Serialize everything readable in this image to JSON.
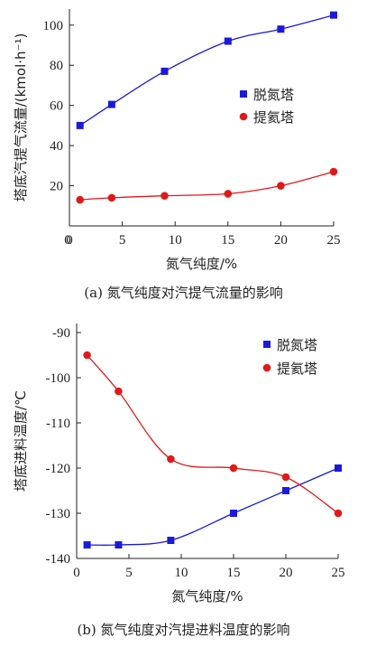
{
  "chart_data": [
    {
      "type": "line",
      "caption": "(a) 氮气纯度对汽提气流量的影响",
      "xlabel": "氮气纯度/%",
      "ylabel": "塔底汽提气流量/(kmol·h⁻¹)",
      "xlim": [
        0,
        25
      ],
      "ylim": [
        0,
        100
      ],
      "xticks": [
        0,
        5,
        10,
        15,
        20,
        25
      ],
      "yticks": [
        20,
        40,
        60,
        80,
        100
      ],
      "legend_position": "right",
      "series": [
        {
          "name": "脱氮塔",
          "color": "#1a1adb",
          "marker": "square",
          "x": [
            1,
            4,
            9,
            15,
            20,
            25
          ],
          "y": [
            50,
            60.5,
            77,
            92,
            98,
            105
          ]
        },
        {
          "name": "提氦塔",
          "color": "#e01919",
          "marker": "circle",
          "x": [
            1,
            4,
            9,
            15,
            20,
            25
          ],
          "y": [
            13,
            14,
            15,
            16,
            20,
            27
          ]
        }
      ]
    },
    {
      "type": "line",
      "caption": "(b) 氮气纯度对汽提进料温度的影响",
      "xlabel": "氮气纯度/%",
      "ylabel": "塔底进料温度/℃",
      "xlim": [
        0,
        25
      ],
      "ylim": [
        -140,
        -90
      ],
      "xticks": [
        0,
        5,
        10,
        15,
        20,
        25
      ],
      "yticks": [
        -140,
        -130,
        -120,
        -110,
        -100,
        -90
      ],
      "legend_position": "top-right",
      "series": [
        {
          "name": "脱氮塔",
          "color": "#1a1adb",
          "marker": "square",
          "x": [
            1,
            4,
            9,
            15,
            20,
            25
          ],
          "y": [
            -137,
            -137,
            -136,
            -130,
            -125,
            -120
          ]
        },
        {
          "name": "提氦塔",
          "color": "#e01919",
          "marker": "circle",
          "x": [
            1,
            4,
            9,
            15,
            20,
            25
          ],
          "y": [
            -95,
            -103,
            -118,
            -120,
            -122,
            -130
          ]
        }
      ]
    }
  ]
}
